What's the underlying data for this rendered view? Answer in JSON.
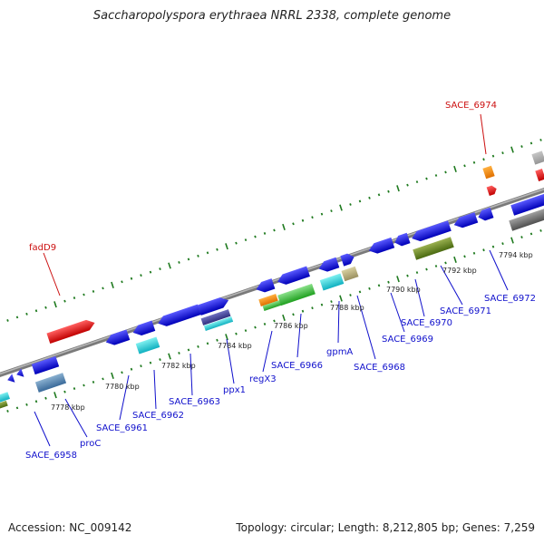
{
  "title": "Saccharopolyspora erythraea NRRL 2338, complete genome",
  "footer": {
    "accession": "Accession: NC_009142",
    "topology": "Topology: circular; Length: 8,212,805 bp; Genes: 7,259"
  },
  "scale_labels": [
    "7778 kbp",
    "7780 kbp",
    "7782 kbp",
    "7784 kbp",
    "7786 kbp",
    "7788 kbp",
    "7790 kbp",
    "7792 kbp",
    "7794 kbp"
  ],
  "gene_labels": {
    "SACE_6974": "SACE_6974",
    "fadD9": "fadD9",
    "SACE_6958": "SACE_6958",
    "proC": "proC",
    "SACE_6961": "SACE_6961",
    "SACE_6962": "SACE_6962",
    "SACE_6963": "SACE_6963",
    "ppx1": "ppx1",
    "regX3": "regX3",
    "SACE_6966": "SACE_6966",
    "gpmA": "gpmA",
    "SACE_6968": "SACE_6968",
    "SACE_6969": "SACE_6969",
    "SACE_6970": "SACE_6970",
    "SACE_6971": "SACE_6971",
    "SACE_6972": "SACE_6972"
  },
  "colors": {
    "backbone": "#8a8a8a",
    "dots": "#1f7a1f",
    "gene_blue": "#1010e0",
    "gene_red": "#e01010",
    "label_blue": "#1010cc",
    "label_red": "#cc1010"
  }
}
